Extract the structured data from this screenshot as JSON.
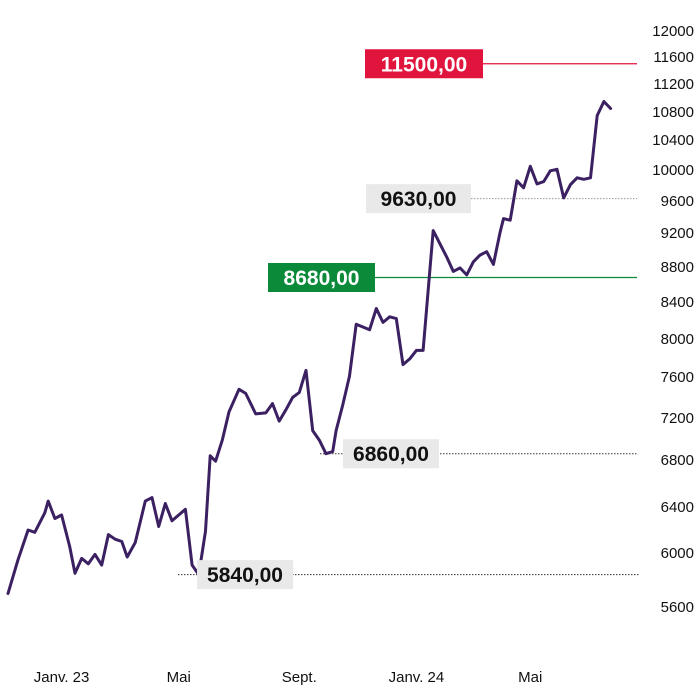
{
  "chart_data": {
    "type": "line",
    "title": "",
    "xlabel": "",
    "ylabel": "",
    "ylim": [
      5400,
      12100
    ],
    "y_ticks": [
      "12000",
      "11600",
      "11200",
      "10800",
      "10400",
      "10000",
      "9600",
      "9200",
      "8800",
      "8400",
      "8000",
      "7600",
      "7200",
      "6800",
      "6400",
      "6000",
      "5600"
    ],
    "y_tick_values": [
      12000,
      11600,
      11200,
      10800,
      10400,
      10000,
      9600,
      9200,
      8800,
      8400,
      8000,
      7600,
      7200,
      6800,
      6400,
      6000,
      5600
    ],
    "y_scale": "slightly compressed (log-like)",
    "x_ticks": [
      {
        "label": "Janv. 23",
        "t": 8
      },
      {
        "label": "Mai",
        "t": 25.5
      },
      {
        "label": "Sept.",
        "t": 43.5
      },
      {
        "label": "Janv. 24",
        "t": 61
      },
      {
        "label": "Mai",
        "t": 78
      }
    ],
    "x_range": [
      0,
      92
    ],
    "series": [
      {
        "color": "#3b2062",
        "points": [
          [
            0,
            5700
          ],
          [
            1.5,
            5950
          ],
          [
            3,
            6200
          ],
          [
            4,
            6180
          ],
          [
            5.5,
            6350
          ],
          [
            6,
            6450
          ],
          [
            7,
            6300
          ],
          [
            8,
            6330
          ],
          [
            9.2,
            6060
          ],
          [
            10,
            5850
          ],
          [
            11,
            5960
          ],
          [
            12,
            5920
          ],
          [
            13,
            5990
          ],
          [
            14,
            5910
          ],
          [
            15,
            6160
          ],
          [
            16,
            6120
          ],
          [
            17,
            6100
          ],
          [
            17.8,
            5970
          ],
          [
            19,
            6090
          ],
          [
            20.5,
            6450
          ],
          [
            21.5,
            6480
          ],
          [
            22.5,
            6230
          ],
          [
            23.5,
            6430
          ],
          [
            24.5,
            6280
          ],
          [
            25.5,
            6330
          ],
          [
            26.5,
            6380
          ],
          [
            27.5,
            5910
          ],
          [
            28.5,
            5840
          ],
          [
            29.5,
            6190
          ],
          [
            30.2,
            6840
          ],
          [
            31,
            6790
          ],
          [
            32,
            6990
          ],
          [
            33,
            7260
          ],
          [
            34.5,
            7480
          ],
          [
            35.5,
            7440
          ],
          [
            37,
            7240
          ],
          [
            38.5,
            7250
          ],
          [
            39.5,
            7340
          ],
          [
            40.5,
            7170
          ],
          [
            41.5,
            7280
          ],
          [
            42.5,
            7400
          ],
          [
            43.5,
            7450
          ],
          [
            44.5,
            7670
          ],
          [
            45.5,
            7080
          ],
          [
            46.5,
            6990
          ],
          [
            47.5,
            6860
          ],
          [
            48.5,
            6880
          ],
          [
            49,
            7080
          ],
          [
            50,
            7330
          ],
          [
            51,
            7610
          ],
          [
            52,
            8160
          ],
          [
            53,
            8130
          ],
          [
            54,
            8100
          ],
          [
            55,
            8330
          ],
          [
            56,
            8180
          ],
          [
            57,
            8240
          ],
          [
            58,
            8220
          ],
          [
            59,
            7730
          ],
          [
            60,
            7790
          ],
          [
            61,
            7880
          ],
          [
            62,
            7880
          ],
          [
            63.5,
            9230
          ],
          [
            65.5,
            8920
          ],
          [
            66.5,
            8750
          ],
          [
            67.5,
            8790
          ],
          [
            68.5,
            8710
          ],
          [
            69.5,
            8860
          ],
          [
            70.5,
            8940
          ],
          [
            71.5,
            8980
          ],
          [
            72.5,
            8830
          ],
          [
            73.5,
            9210
          ],
          [
            74,
            9380
          ],
          [
            75,
            9360
          ],
          [
            76,
            9860
          ],
          [
            77,
            9770
          ],
          [
            78,
            10050
          ],
          [
            79,
            9820
          ],
          [
            80,
            9850
          ],
          [
            81,
            9990
          ],
          [
            82,
            10010
          ],
          [
            83,
            9640
          ],
          [
            84,
            9810
          ],
          [
            85,
            9900
          ],
          [
            86,
            9880
          ],
          [
            87,
            9900
          ],
          [
            88,
            10750
          ],
          [
            89,
            10950
          ],
          [
            90,
            10850
          ]
        ]
      }
    ],
    "reference_levels": [
      {
        "label": "11500,00",
        "value": 11500,
        "color": "#e0143c",
        "style": "solid",
        "label_bg": "#e0143c",
        "label_color": "#ffffff"
      },
      {
        "label": "9630,00",
        "value": 9630,
        "color": "#999999",
        "style": "dotted",
        "label_bg": "#e9e9e9",
        "label_color": "#111111"
      },
      {
        "label": "8680,00",
        "value": 8680,
        "color": "#0b8a3a",
        "style": "solid",
        "label_bg": "#0b8a3a",
        "label_color": "#ffffff"
      },
      {
        "label": "6860,00",
        "value": 6860,
        "color": "#333333",
        "style": "dotted",
        "label_bg": "#e9e9e9",
        "label_color": "#111111"
      },
      {
        "label": "5840,00",
        "value": 5840,
        "color": "#333333",
        "style": "dotted",
        "label_bg": "#e9e9e9",
        "label_color": "#111111"
      }
    ],
    "grid": false,
    "legend": "none"
  }
}
